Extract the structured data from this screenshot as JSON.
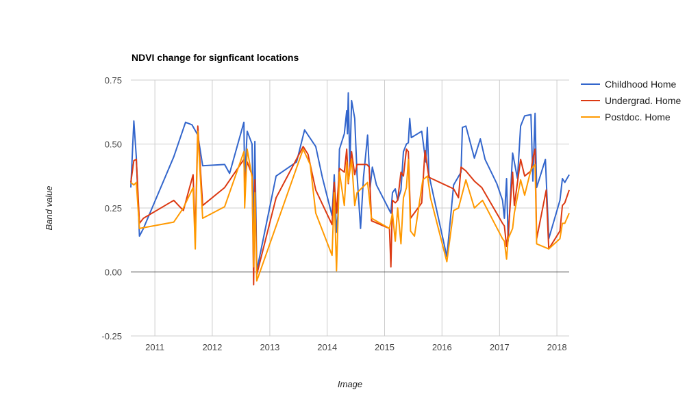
{
  "chart_data": {
    "type": "line",
    "title": "NDVI change for signficant locations",
    "xlabel": "Image",
    "ylabel": "Band value",
    "x_is_date": true,
    "xlim": [
      "2010-08-01",
      "2018-03-20"
    ],
    "ylim": [
      -0.25,
      0.75
    ],
    "x_ticks": [
      "2011-01-01",
      "2012-01-01",
      "2013-01-01",
      "2014-01-01",
      "2015-01-01",
      "2016-01-01",
      "2017-01-01",
      "2018-01-01"
    ],
    "x_tick_labels": [
      "2011",
      "2012",
      "2013",
      "2014",
      "2015",
      "2016",
      "2017",
      "2018"
    ],
    "y_ticks": [
      -0.25,
      0,
      0.25,
      0.5,
      0.75
    ],
    "y_tick_labels": [
      "-0.25",
      "0.00",
      "0.25",
      "0.50",
      "0.75"
    ],
    "grid": true,
    "legend_position": "right",
    "series": [
      {
        "name": "Childhood Home",
        "color": "#3366cc",
        "points": [
          [
            "2010-08-01",
            0.33
          ],
          [
            "2010-08-20",
            0.59
          ],
          [
            "2010-09-05",
            0.45
          ],
          [
            "2010-09-25",
            0.14
          ],
          [
            "2010-10-20",
            0.17
          ],
          [
            "2011-05-01",
            0.45
          ],
          [
            "2011-07-15",
            0.585
          ],
          [
            "2011-08-25",
            0.575
          ],
          [
            "2011-10-01",
            0.535
          ],
          [
            "2011-11-01",
            0.415
          ],
          [
            "2012-03-20",
            0.42
          ],
          [
            "2012-04-20",
            0.385
          ],
          [
            "2012-07-20",
            0.585
          ],
          [
            "2012-07-25",
            0.355
          ],
          [
            "2012-08-10",
            0.55
          ],
          [
            "2012-09-10",
            0.5
          ],
          [
            "2012-09-20",
            0.14
          ],
          [
            "2012-09-28",
            0.51
          ],
          [
            "2012-10-10",
            0.005
          ],
          [
            "2013-02-10",
            0.375
          ],
          [
            "2013-06-20",
            0.43
          ],
          [
            "2013-08-10",
            0.555
          ],
          [
            "2013-10-20",
            0.49
          ],
          [
            "2013-12-01",
            0.37
          ],
          [
            "2014-02-01",
            0.22
          ],
          [
            "2014-02-15",
            0.38
          ],
          [
            "2014-03-01",
            0.155
          ],
          [
            "2014-03-10",
            0.22
          ],
          [
            "2014-03-20",
            0.48
          ],
          [
            "2014-04-20",
            0.54
          ],
          [
            "2014-05-05",
            0.63
          ],
          [
            "2014-05-10",
            0.54
          ],
          [
            "2014-05-15",
            0.7
          ],
          [
            "2014-05-25",
            0.41
          ],
          [
            "2014-06-05",
            0.67
          ],
          [
            "2014-06-25",
            0.6
          ],
          [
            "2014-07-10",
            0.38
          ],
          [
            "2014-08-01",
            0.17
          ],
          [
            "2014-08-20",
            0.37
          ],
          [
            "2014-09-15",
            0.535
          ],
          [
            "2014-10-01",
            0.33
          ],
          [
            "2014-10-15",
            0.41
          ],
          [
            "2014-11-10",
            0.34
          ],
          [
            "2015-02-10",
            0.23
          ],
          [
            "2015-02-20",
            0.31
          ],
          [
            "2015-03-10",
            0.325
          ],
          [
            "2015-03-25",
            0.28
          ],
          [
            "2015-04-15",
            0.32
          ],
          [
            "2015-05-01",
            0.47
          ],
          [
            "2015-05-20",
            0.5
          ],
          [
            "2015-06-01",
            0.505
          ],
          [
            "2015-06-10",
            0.6
          ],
          [
            "2015-06-20",
            0.525
          ],
          [
            "2015-08-25",
            0.55
          ],
          [
            "2015-09-20",
            0.43
          ],
          [
            "2015-09-30",
            0.565
          ],
          [
            "2015-10-10",
            0.38
          ],
          [
            "2016-02-01",
            0.06
          ],
          [
            "2016-03-15",
            0.34
          ],
          [
            "2016-05-01",
            0.39
          ],
          [
            "2016-05-10",
            0.565
          ],
          [
            "2016-06-01",
            0.57
          ],
          [
            "2016-07-25",
            0.445
          ],
          [
            "2016-09-01",
            0.52
          ],
          [
            "2016-10-01",
            0.44
          ],
          [
            "2016-12-15",
            0.345
          ],
          [
            "2017-01-20",
            0.28
          ],
          [
            "2017-02-01",
            0.21
          ],
          [
            "2017-02-15",
            0.365
          ],
          [
            "2017-02-25",
            0.12
          ],
          [
            "2017-03-25",
            0.465
          ],
          [
            "2017-04-25",
            0.365
          ],
          [
            "2017-05-15",
            0.57
          ],
          [
            "2017-06-10",
            0.61
          ],
          [
            "2017-07-20",
            0.615
          ],
          [
            "2017-08-01",
            0.355
          ],
          [
            "2017-08-15",
            0.62
          ],
          [
            "2017-08-25",
            0.33
          ],
          [
            "2017-10-20",
            0.44
          ],
          [
            "2017-11-10",
            0.13
          ],
          [
            "2018-01-20",
            0.28
          ],
          [
            "2018-02-05",
            0.365
          ],
          [
            "2018-02-20",
            0.35
          ],
          [
            "2018-03-20",
            0.38
          ]
        ]
      },
      {
        "name": "Undergrad. Home",
        "color": "#dc3912",
        "points": [
          [
            "2010-08-01",
            0.35
          ],
          [
            "2010-08-20",
            0.435
          ],
          [
            "2010-09-05",
            0.44
          ],
          [
            "2010-09-25",
            0.19
          ],
          [
            "2010-10-20",
            0.21
          ],
          [
            "2011-05-01",
            0.28
          ],
          [
            "2011-07-01",
            0.24
          ],
          [
            "2011-09-01",
            0.38
          ],
          [
            "2011-09-15",
            0.14
          ],
          [
            "2011-10-01",
            0.57
          ],
          [
            "2011-11-01",
            0.26
          ],
          [
            "2012-03-20",
            0.33
          ],
          [
            "2012-07-20",
            0.44
          ],
          [
            "2012-07-25",
            0.35
          ],
          [
            "2012-08-10",
            0.43
          ],
          [
            "2012-09-10",
            0.38
          ],
          [
            "2012-09-20",
            -0.05
          ],
          [
            "2012-09-28",
            0.36
          ],
          [
            "2012-10-10",
            -0.01
          ],
          [
            "2013-02-10",
            0.29
          ],
          [
            "2013-08-01",
            0.49
          ],
          [
            "2013-09-01",
            0.46
          ],
          [
            "2013-10-20",
            0.32
          ],
          [
            "2014-02-01",
            0.185
          ],
          [
            "2014-02-15",
            0.35
          ],
          [
            "2014-03-01",
            0.23
          ],
          [
            "2014-03-20",
            0.405
          ],
          [
            "2014-04-20",
            0.39
          ],
          [
            "2014-05-05",
            0.48
          ],
          [
            "2014-05-15",
            0.345
          ],
          [
            "2014-06-05",
            0.47
          ],
          [
            "2014-06-25",
            0.38
          ],
          [
            "2014-07-10",
            0.42
          ],
          [
            "2014-09-10",
            0.42
          ],
          [
            "2014-09-25",
            0.41
          ],
          [
            "2014-10-10",
            0.2
          ],
          [
            "2015-02-01",
            0.17
          ],
          [
            "2015-02-10",
            0.02
          ],
          [
            "2015-02-20",
            0.28
          ],
          [
            "2015-03-10",
            0.27
          ],
          [
            "2015-03-25",
            0.28
          ],
          [
            "2015-04-15",
            0.39
          ],
          [
            "2015-05-01",
            0.375
          ],
          [
            "2015-05-20",
            0.48
          ],
          [
            "2015-06-01",
            0.47
          ],
          [
            "2015-06-15",
            0.21
          ],
          [
            "2015-08-25",
            0.27
          ],
          [
            "2015-09-15",
            0.475
          ],
          [
            "2015-10-10",
            0.37
          ],
          [
            "2016-03-15",
            0.325
          ],
          [
            "2016-04-15",
            0.29
          ],
          [
            "2016-05-01",
            0.41
          ],
          [
            "2016-06-01",
            0.395
          ],
          [
            "2016-07-25",
            0.355
          ],
          [
            "2016-09-10",
            0.33
          ],
          [
            "2017-01-20",
            0.19
          ],
          [
            "2017-02-01",
            0.18
          ],
          [
            "2017-02-15",
            0.1
          ],
          [
            "2017-02-25",
            0.15
          ],
          [
            "2017-03-25",
            0.39
          ],
          [
            "2017-04-05",
            0.26
          ],
          [
            "2017-05-15",
            0.44
          ],
          [
            "2017-06-10",
            0.375
          ],
          [
            "2017-07-20",
            0.395
          ],
          [
            "2017-08-01",
            0.445
          ],
          [
            "2017-08-15",
            0.48
          ],
          [
            "2017-08-25",
            0.13
          ],
          [
            "2017-10-25",
            0.32
          ],
          [
            "2017-11-10",
            0.09
          ],
          [
            "2018-01-20",
            0.16
          ],
          [
            "2018-02-05",
            0.26
          ],
          [
            "2018-02-20",
            0.27
          ],
          [
            "2018-03-20",
            0.32
          ]
        ]
      },
      {
        "name": "Postdoc. Home",
        "color": "#ff9900",
        "points": [
          [
            "2010-08-01",
            0.35
          ],
          [
            "2010-08-20",
            0.34
          ],
          [
            "2010-09-05",
            0.35
          ],
          [
            "2010-09-25",
            0.17
          ],
          [
            "2011-05-01",
            0.195
          ],
          [
            "2011-07-01",
            0.25
          ],
          [
            "2011-09-01",
            0.33
          ],
          [
            "2011-09-15",
            0.09
          ],
          [
            "2011-10-01",
            0.55
          ],
          [
            "2011-11-01",
            0.21
          ],
          [
            "2012-03-20",
            0.255
          ],
          [
            "2012-07-20",
            0.47
          ],
          [
            "2012-07-25",
            0.25
          ],
          [
            "2012-08-10",
            0.48
          ],
          [
            "2012-09-10",
            0.37
          ],
          [
            "2012-09-20",
            0.02
          ],
          [
            "2012-09-28",
            0.31
          ],
          [
            "2012-10-10",
            -0.035
          ],
          [
            "2013-08-01",
            0.48
          ],
          [
            "2013-09-15",
            0.42
          ],
          [
            "2013-10-20",
            0.23
          ],
          [
            "2014-02-01",
            0.065
          ],
          [
            "2014-02-15",
            0.31
          ],
          [
            "2014-03-01",
            0.005
          ],
          [
            "2014-03-20",
            0.39
          ],
          [
            "2014-04-20",
            0.26
          ],
          [
            "2014-05-05",
            0.43
          ],
          [
            "2014-05-15",
            0.35
          ],
          [
            "2014-06-05",
            0.44
          ],
          [
            "2014-06-25",
            0.26
          ],
          [
            "2014-07-10",
            0.31
          ],
          [
            "2014-09-15",
            0.35
          ],
          [
            "2014-10-10",
            0.21
          ],
          [
            "2015-02-01",
            0.17
          ],
          [
            "2015-02-20",
            0.23
          ],
          [
            "2015-03-10",
            0.12
          ],
          [
            "2015-03-25",
            0.25
          ],
          [
            "2015-04-15",
            0.11
          ],
          [
            "2015-05-01",
            0.29
          ],
          [
            "2015-05-20",
            0.33
          ],
          [
            "2015-06-01",
            0.44
          ],
          [
            "2015-06-15",
            0.16
          ],
          [
            "2015-07-10",
            0.14
          ],
          [
            "2015-09-01",
            0.36
          ],
          [
            "2015-10-01",
            0.375
          ],
          [
            "2015-10-20",
            0.29
          ],
          [
            "2016-02-01",
            0.04
          ],
          [
            "2016-03-15",
            0.24
          ],
          [
            "2016-04-15",
            0.25
          ],
          [
            "2016-06-01",
            0.36
          ],
          [
            "2016-07-25",
            0.25
          ],
          [
            "2016-09-15",
            0.28
          ],
          [
            "2017-01-20",
            0.13
          ],
          [
            "2017-02-01",
            0.12
          ],
          [
            "2017-02-15",
            0.05
          ],
          [
            "2017-02-25",
            0.13
          ],
          [
            "2017-03-25",
            0.17
          ],
          [
            "2017-04-05",
            0.23
          ],
          [
            "2017-05-15",
            0.36
          ],
          [
            "2017-06-10",
            0.3
          ],
          [
            "2017-07-20",
            0.4
          ],
          [
            "2017-08-01",
            0.41
          ],
          [
            "2017-08-15",
            0.42
          ],
          [
            "2017-08-25",
            0.11
          ],
          [
            "2017-11-10",
            0.09
          ],
          [
            "2018-01-20",
            0.13
          ],
          [
            "2018-02-05",
            0.19
          ],
          [
            "2018-02-20",
            0.19
          ],
          [
            "2018-03-20",
            0.23
          ]
        ]
      }
    ]
  }
}
